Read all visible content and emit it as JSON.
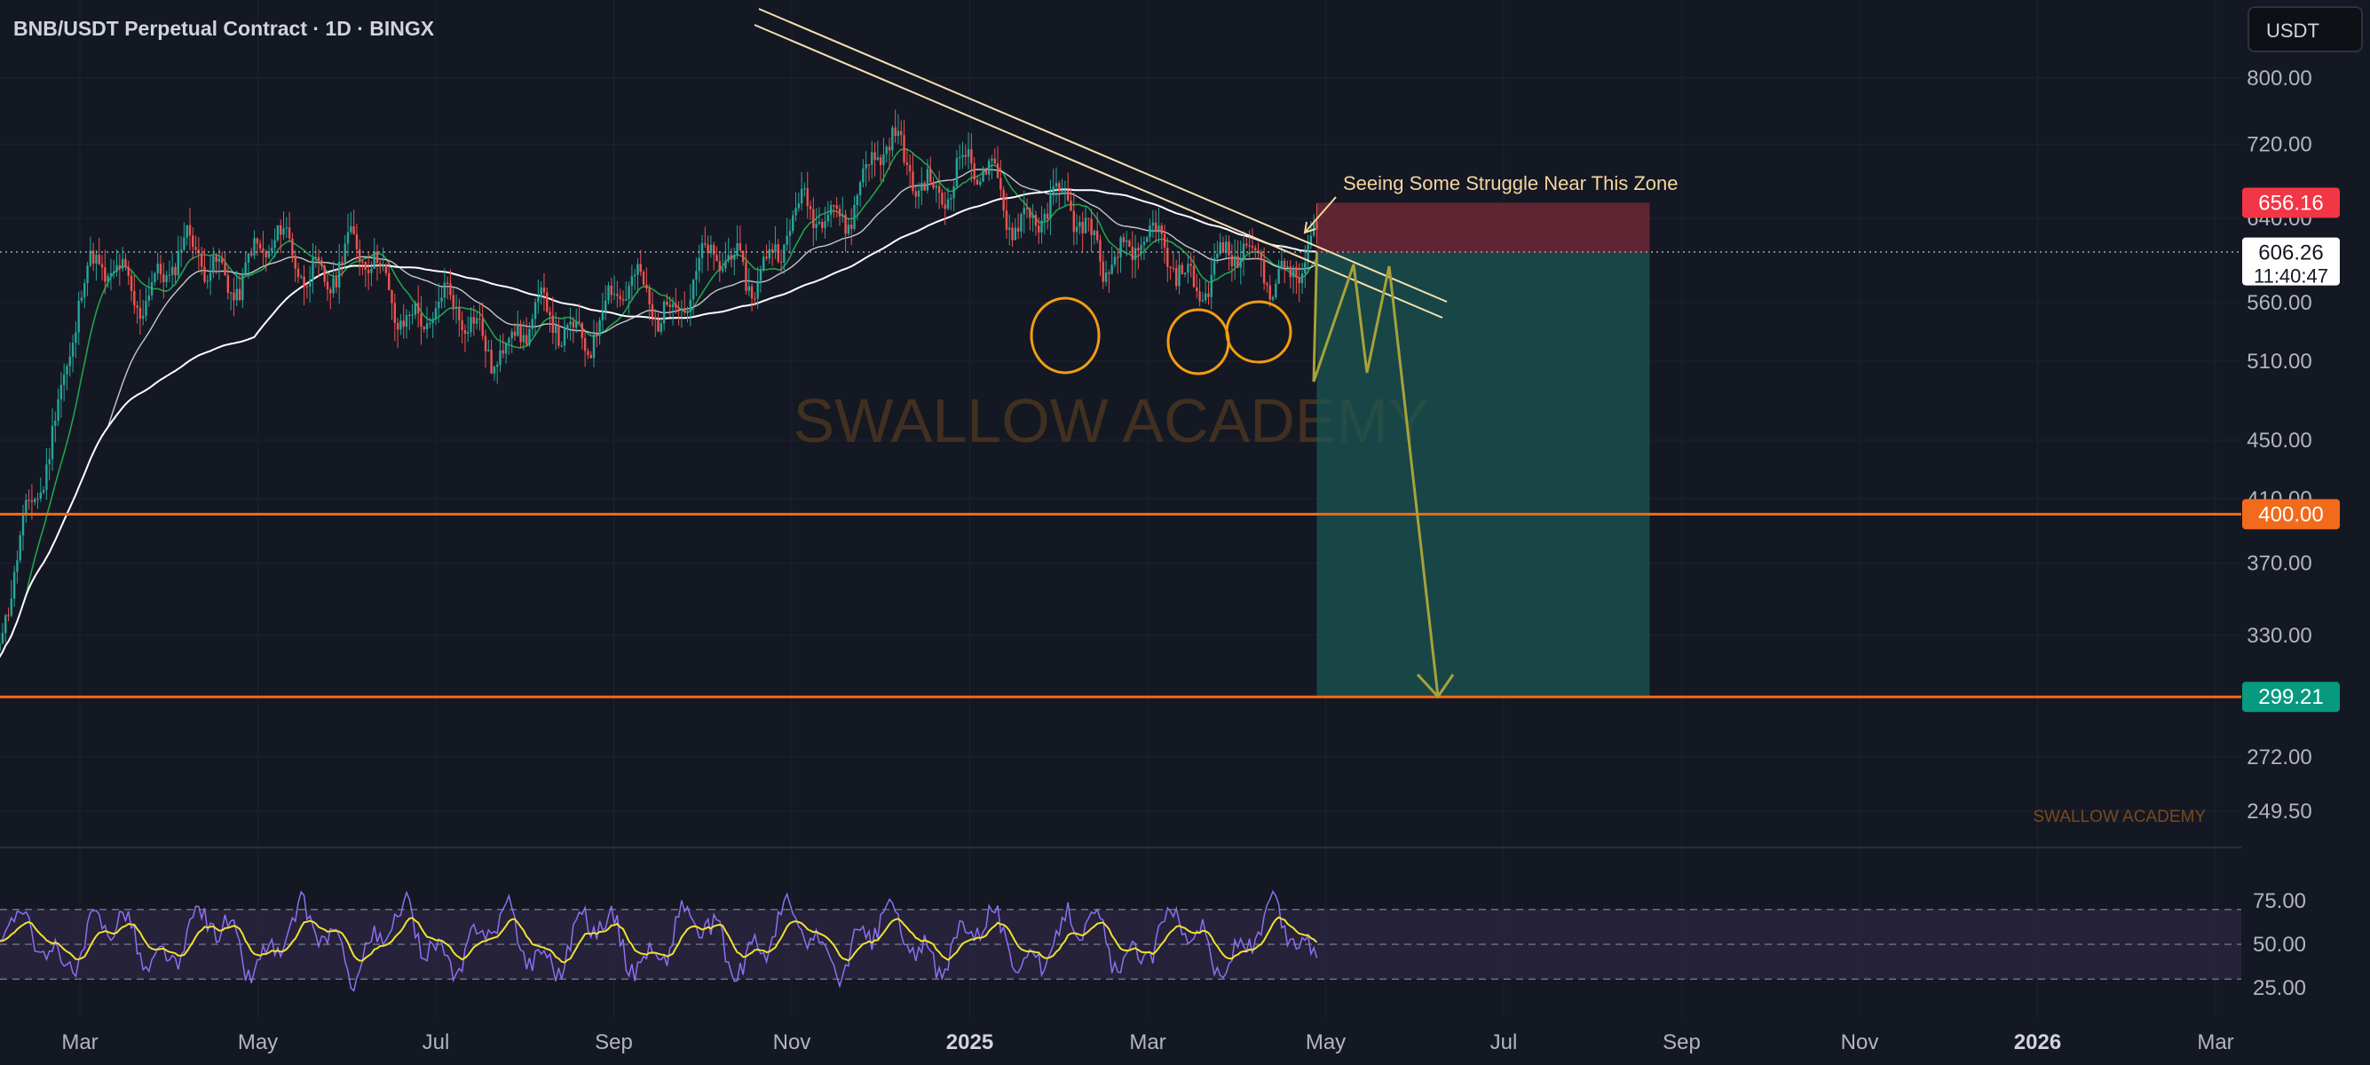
{
  "header": {
    "title": "BNB/USDT Perpetual Contract · 1D · BINGX",
    "currency_button": "USDT"
  },
  "watermark": "SWALLOW ACADEMY",
  "watermark_small": "SWALLOW ACADEMY",
  "annotation": "Seeing Some Struggle Near This Zone",
  "price_axis": {
    "ticks": [
      "800.00",
      "720.00",
      "640.00",
      "560.00",
      "510.00",
      "450.00",
      "410.00",
      "370.00",
      "330.00",
      "272.00",
      "249.50"
    ],
    "tick_values": [
      800,
      720,
      640,
      560,
      510,
      450,
      410,
      370,
      330,
      272,
      249.5
    ]
  },
  "price_labels": {
    "stop": "656.16",
    "current": "606.26",
    "countdown": "11:40:47",
    "level": "400.00",
    "target": "299.21"
  },
  "rsi_axis": {
    "ticks": [
      "75.00",
      "50.00",
      "25.00"
    ]
  },
  "time_axis": {
    "labels": [
      "Mar",
      "May",
      "Jul",
      "Sep",
      "Nov",
      "2025",
      "Mar",
      "May",
      "Jul",
      "Sep",
      "Nov",
      "2026",
      "Mar"
    ],
    "bold": [
      false,
      false,
      false,
      false,
      false,
      true,
      false,
      false,
      false,
      false,
      false,
      true,
      false
    ]
  },
  "colors": {
    "background": "#141823",
    "up": "#26a69a",
    "down": "#ef5350",
    "level_line": "#f26a1b",
    "stop_zone": "#7a2a38",
    "target_zone": "#1a5a55",
    "stop_label": "#f23645",
    "target_label": "#089981",
    "annotation": "#f5d6a0",
    "rsi": "#8e6ff0",
    "rsi_ma": "#f0e130",
    "circle": "#f39c12",
    "projection": "#a7a23a"
  },
  "chart_data": {
    "type": "candlestick",
    "symbol": "BNB/USDT Perpetual Contract",
    "interval": "1D",
    "exchange": "BINGX",
    "y_scale": "log",
    "ylim": [
      230,
      830
    ],
    "x_range": [
      "2024-02",
      "2026-03"
    ],
    "current_price": 606.26,
    "horizontal_levels": [
      400.0,
      299.21
    ],
    "short_position": {
      "stop": 656.16,
      "entry": 606.26,
      "target": 299.21
    },
    "price_path_monthly": [
      {
        "t": "2024-02",
        "price": 300
      },
      {
        "t": "2024-03",
        "price": 570
      },
      {
        "t": "2024-04",
        "price": 590
      },
      {
        "t": "2024-05",
        "price": 600
      },
      {
        "t": "2024-06",
        "price": 600
      },
      {
        "t": "2024-07",
        "price": 545
      },
      {
        "t": "2024-08",
        "price": 530
      },
      {
        "t": "2024-09",
        "price": 555
      },
      {
        "t": "2024-10",
        "price": 580
      },
      {
        "t": "2024-11",
        "price": 620
      },
      {
        "t": "2024-12",
        "price": 700
      },
      {
        "t": "2025-01",
        "price": 680
      },
      {
        "t": "2025-02",
        "price": 640
      },
      {
        "t": "2025-03",
        "price": 600
      },
      {
        "t": "2025-04",
        "price": 590
      },
      {
        "t": "2025-04-28",
        "price": 606
      }
    ],
    "rsi": {
      "levels": [
        70,
        50,
        30
      ],
      "range": [
        20,
        80
      ]
    }
  }
}
